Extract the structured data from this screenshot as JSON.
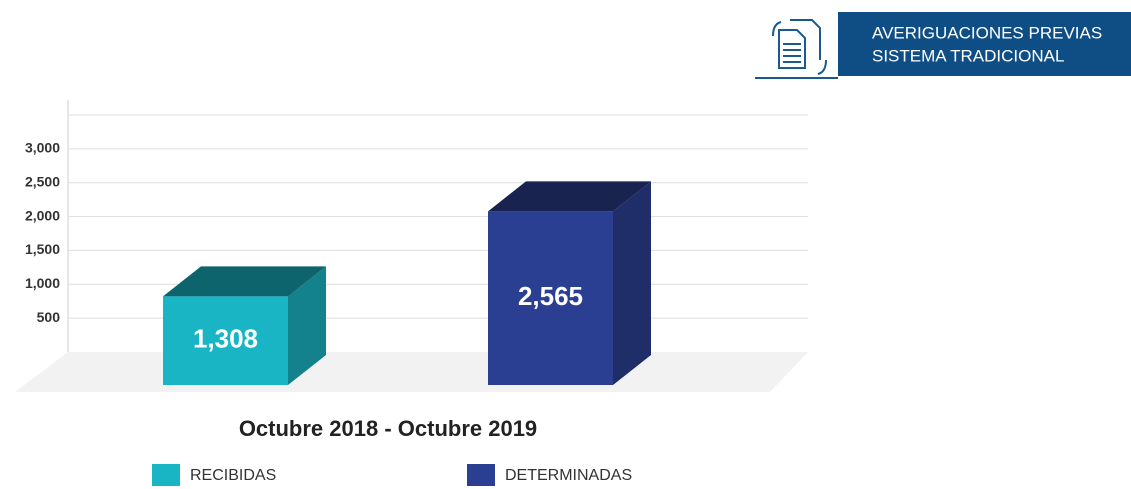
{
  "header": {
    "lines": [
      "AVERIGUACIONES PREVIAS",
      "SISTEMA TRADICIONAL"
    ]
  },
  "chart_data": {
    "type": "bar3d",
    "xlabel": "Octubre 2018 - Octubre 2019",
    "series": [
      {
        "name": "RECIBIDAS",
        "color": "#1ab5c4",
        "values": [
          1308
        ],
        "value_labels": [
          "1,308"
        ]
      },
      {
        "name": "DETERMINADAS",
        "color": "#2b3f92",
        "values": [
          2565
        ],
        "value_labels": [
          "2,565"
        ]
      }
    ],
    "ylim": [
      0,
      3500
    ],
    "yticks": [
      {
        "value": 500,
        "label": "500"
      },
      {
        "value": 1000,
        "label": "1,000"
      },
      {
        "value": 1500,
        "label": "1,500"
      },
      {
        "value": 2000,
        "label": "2,000"
      },
      {
        "value": 2500,
        "label": "2,500"
      },
      {
        "value": 3000,
        "label": "3,000"
      }
    ],
    "grid": true
  }
}
